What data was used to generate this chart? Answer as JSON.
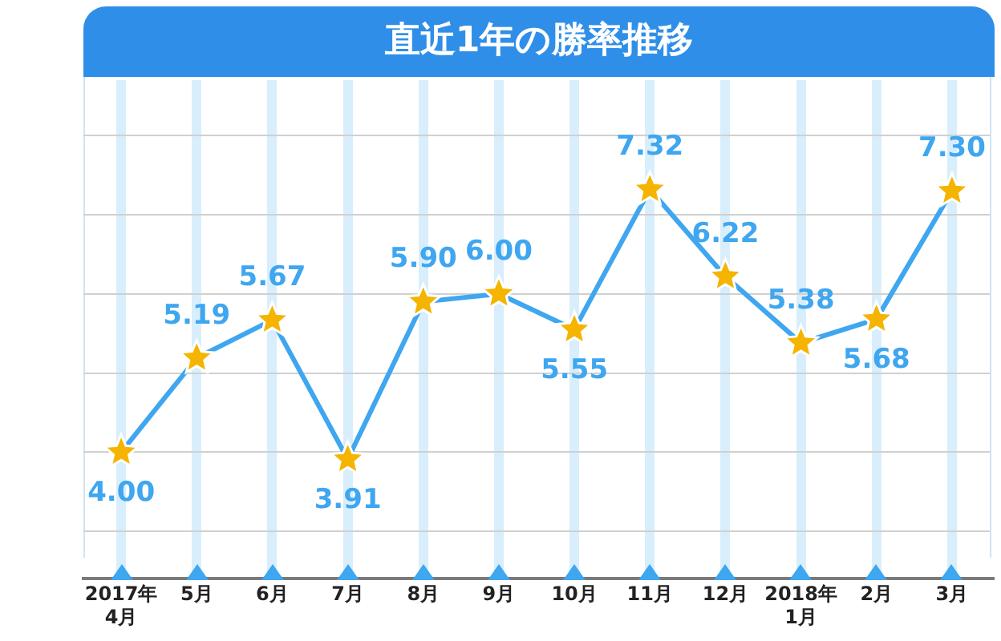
{
  "chart_data": {
    "type": "line",
    "title": "直近1年の勝率推移",
    "categories": [
      "2017年\n4月",
      "5月",
      "6月",
      "7月",
      "8月",
      "9月",
      "10月",
      "11月",
      "12月",
      "2018年\n1月",
      "2月",
      "3月"
    ],
    "series": [
      {
        "color": "#3fa6f0",
        "values": [
          4.0,
          5.19,
          5.67,
          3.91,
          5.9,
          6.0,
          5.55,
          7.32,
          6.22,
          5.38,
          5.68,
          7.3
        ],
        "value_labels": [
          "4.00",
          "5.19",
          "5.67",
          "3.91",
          "5.90",
          "6.00",
          "5.55",
          "7.32",
          "6.22",
          "5.38",
          "5.68",
          "7.30"
        ]
      }
    ],
    "ylim": [
      2.4,
      8.7
    ],
    "yticks": [
      {
        "value": 3,
        "label": null
      },
      {
        "value": 4,
        "label": null
      },
      {
        "value": 5,
        "label": null
      },
      {
        "value": 6,
        "label": null
      },
      {
        "value": 7,
        "label": null
      },
      {
        "value": 8,
        "label": null
      }
    ],
    "tick_labels": "x",
    "grid": true,
    "legend": false,
    "marker": "star",
    "line_style": "solid"
  }
}
